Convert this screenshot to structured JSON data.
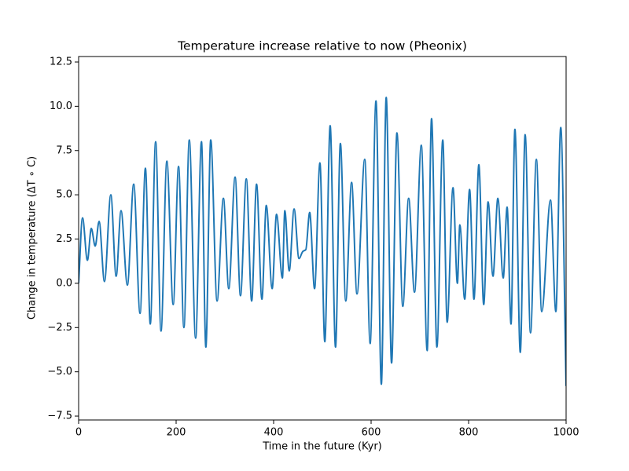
{
  "chart_data": {
    "type": "line",
    "title": "Temperature increase relative to now (Pheonix)",
    "xlabel": "Time in the future (Kyr)",
    "ylabel": "Change in temperature (ΔT ∘ C)",
    "x": [
      0,
      8,
      18,
      26,
      34,
      42,
      53,
      66,
      77,
      87,
      100,
      113,
      126,
      137,
      147,
      158,
      169,
      181,
      194,
      205,
      216,
      227,
      240,
      252,
      261,
      271,
      284,
      297,
      308,
      321,
      332,
      344,
      355,
      365,
      376,
      385,
      397,
      406,
      418,
      423,
      432,
      442,
      452,
      460,
      466,
      474,
      484,
      495,
      505,
      516,
      527,
      537,
      548,
      560,
      571,
      587,
      598,
      610,
      621,
      631,
      642,
      653,
      665,
      677,
      689,
      703,
      715,
      724,
      735,
      747,
      756,
      768,
      777,
      782,
      792,
      802,
      811,
      821,
      831,
      840,
      850,
      860,
      871,
      879,
      887,
      895,
      906,
      916,
      927,
      939,
      950,
      968,
      979,
      989,
      1000
    ],
    "series": [
      {
        "name": "temperature",
        "color": "#1f77b4",
        "values": [
          0.0,
          3.7,
          1.3,
          3.1,
          2.1,
          3.5,
          0.1,
          5.0,
          0.4,
          4.1,
          -0.1,
          5.6,
          -1.7,
          6.5,
          -2.3,
          8.0,
          -2.7,
          6.9,
          -1.2,
          6.6,
          -2.5,
          8.1,
          -3.1,
          8.0,
          -3.6,
          8.1,
          -1.0,
          4.8,
          -0.3,
          6.0,
          -0.7,
          5.9,
          -1.0,
          5.6,
          -0.9,
          4.4,
          -0.3,
          3.9,
          0.3,
          4.1,
          0.7,
          4.2,
          1.4,
          1.8,
          1.9,
          4.0,
          -0.3,
          6.8,
          -3.3,
          8.9,
          -3.6,
          7.9,
          -1.0,
          5.7,
          -0.6,
          7.0,
          -3.4,
          10.3,
          -5.7,
          10.5,
          -4.5,
          8.5,
          -1.3,
          4.8,
          -0.5,
          7.8,
          -3.8,
          9.3,
          -3.6,
          8.1,
          -2.2,
          5.4,
          0.0,
          3.3,
          -0.9,
          5.3,
          -0.9,
          6.7,
          -1.2,
          4.6,
          0.4,
          4.8,
          0.3,
          4.3,
          -2.3,
          8.7,
          -3.9,
          8.4,
          -2.8,
          7.0,
          -1.6,
          4.7,
          -1.6,
          8.8,
          -5.8
        ]
      }
    ],
    "xlim": [
      0,
      1000
    ],
    "xticks": [
      0,
      200,
      400,
      600,
      800,
      1000
    ],
    "ylim": [
      -7.72,
      12.81
    ],
    "yticks": [
      {
        "value": -7.5,
        "label": "−7.5"
      },
      {
        "value": -5,
        "label": "−5.0"
      },
      {
        "value": -2.5,
        "label": "−2.5"
      },
      {
        "value": 0,
        "label": "0.0"
      },
      2.5,
      {
        "value": 5,
        "label": "5.0"
      },
      7.5,
      {
        "value": 10,
        "label": "10.0"
      },
      12.5
    ]
  }
}
